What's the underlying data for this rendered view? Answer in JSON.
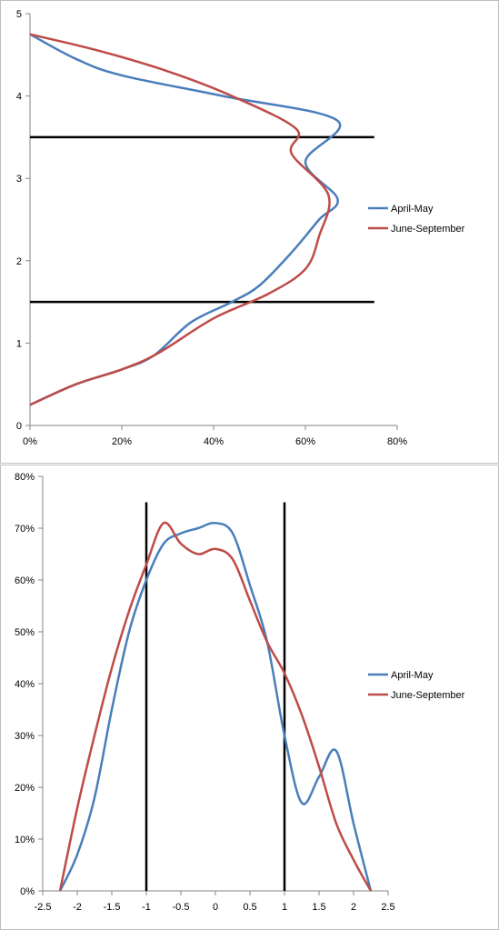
{
  "chart_data": [
    {
      "type": "line",
      "title": "",
      "xlabel": "",
      "ylabel": "",
      "xlim": [
        0,
        0.8
      ],
      "ylim": [
        0,
        5
      ],
      "x_ticks": [
        "0%",
        "20%",
        "40%",
        "60%",
        "80%"
      ],
      "y_ticks": [
        "0",
        "1",
        "2",
        "3",
        "4",
        "5"
      ],
      "grid": false,
      "legend_position": "right",
      "reference_lines": [
        {
          "orientation": "horizontal",
          "y": 1.5,
          "x_range": [
            0,
            0.75
          ],
          "color": "#000000"
        },
        {
          "orientation": "horizontal",
          "y": 3.5,
          "x_range": [
            0,
            0.75
          ],
          "color": "#000000"
        }
      ],
      "series": [
        {
          "name": "April-May",
          "color": "#4a7ebb",
          "points": [
            [
              0.0,
              0.25
            ],
            [
              0.1,
              0.5
            ],
            [
              0.2,
              0.68
            ],
            [
              0.27,
              0.85
            ],
            [
              0.35,
              1.25
            ],
            [
              0.44,
              1.5
            ],
            [
              0.5,
              1.7
            ],
            [
              0.57,
              2.1
            ],
            [
              0.63,
              2.5
            ],
            [
              0.67,
              2.75
            ],
            [
              0.6,
              3.2
            ],
            [
              0.67,
              3.7
            ],
            [
              0.42,
              4.0
            ],
            [
              0.2,
              4.25
            ],
            [
              0.1,
              4.45
            ],
            [
              0.0,
              4.75
            ]
          ]
        },
        {
          "name": "June-September",
          "color": "#be4b48",
          "points": [
            [
              0.0,
              0.25
            ],
            [
              0.1,
              0.5
            ],
            [
              0.2,
              0.68
            ],
            [
              0.28,
              0.88
            ],
            [
              0.4,
              1.3
            ],
            [
              0.52,
              1.6
            ],
            [
              0.6,
              1.9
            ],
            [
              0.63,
              2.3
            ],
            [
              0.65,
              2.8
            ],
            [
              0.57,
              3.3
            ],
            [
              0.58,
              3.6
            ],
            [
              0.44,
              4.0
            ],
            [
              0.3,
              4.3
            ],
            [
              0.15,
              4.55
            ],
            [
              0.0,
              4.75
            ]
          ]
        }
      ]
    },
    {
      "type": "line",
      "title": "",
      "xlabel": "",
      "ylabel": "",
      "xlim": [
        -2.5,
        2.5
      ],
      "ylim": [
        0,
        0.8
      ],
      "x_ticks": [
        "-2.5",
        "-2",
        "-1.5",
        "-1",
        "-0.5",
        "0",
        "0.5",
        "1",
        "1.5",
        "2",
        "2.5"
      ],
      "y_ticks": [
        "0%",
        "10%",
        "20%",
        "30%",
        "40%",
        "50%",
        "60%",
        "70%",
        "80%"
      ],
      "grid": false,
      "legend_position": "right",
      "reference_lines": [
        {
          "orientation": "vertical",
          "x": -1,
          "y_range": [
            0,
            0.75
          ],
          "color": "#000000"
        },
        {
          "orientation": "vertical",
          "x": 1,
          "y_range": [
            0,
            0.75
          ],
          "color": "#000000"
        }
      ],
      "series": [
        {
          "name": "April-May",
          "color": "#4a7ebb",
          "points": [
            [
              -2.25,
              0.0
            ],
            [
              -2.0,
              0.07
            ],
            [
              -1.75,
              0.18
            ],
            [
              -1.5,
              0.35
            ],
            [
              -1.25,
              0.5
            ],
            [
              -1.0,
              0.6
            ],
            [
              -0.75,
              0.67
            ],
            [
              -0.5,
              0.69
            ],
            [
              -0.25,
              0.7
            ],
            [
              0.0,
              0.71
            ],
            [
              0.25,
              0.69
            ],
            [
              0.5,
              0.59
            ],
            [
              0.75,
              0.48
            ],
            [
              1.0,
              0.3
            ],
            [
              1.25,
              0.17
            ],
            [
              1.5,
              0.22
            ],
            [
              1.75,
              0.27
            ],
            [
              2.0,
              0.13
            ],
            [
              2.25,
              0.0
            ]
          ]
        },
        {
          "name": "June-September",
          "color": "#be4b48",
          "points": [
            [
              -2.25,
              0.0
            ],
            [
              -2.0,
              0.16
            ],
            [
              -1.75,
              0.3
            ],
            [
              -1.5,
              0.43
            ],
            [
              -1.25,
              0.54
            ],
            [
              -1.0,
              0.63
            ],
            [
              -0.75,
              0.71
            ],
            [
              -0.5,
              0.67
            ],
            [
              -0.25,
              0.65
            ],
            [
              0.0,
              0.66
            ],
            [
              0.25,
              0.64
            ],
            [
              0.5,
              0.56
            ],
            [
              0.75,
              0.48
            ],
            [
              1.0,
              0.42
            ],
            [
              1.25,
              0.34
            ],
            [
              1.5,
              0.24
            ],
            [
              1.75,
              0.13
            ],
            [
              2.0,
              0.06
            ],
            [
              2.25,
              0.0
            ]
          ]
        }
      ]
    }
  ]
}
